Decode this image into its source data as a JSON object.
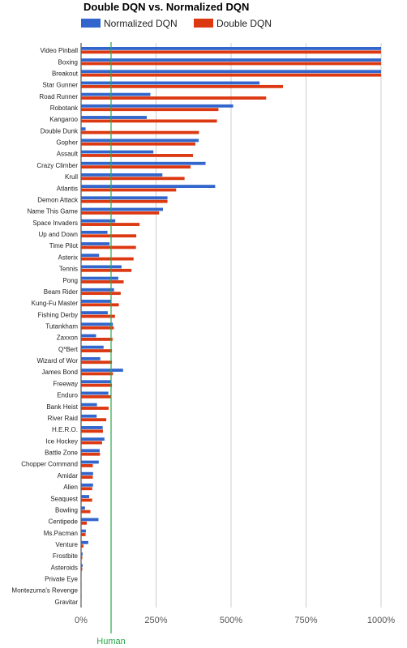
{
  "chart_data": {
    "type": "bar",
    "orientation": "horizontal",
    "title": "Double DQN vs. Normalized DQN",
    "legend_position": "top",
    "categories": [
      "Video Pinball",
      "Boxing",
      "Breakout",
      "Star Gunner",
      "Road Runner",
      "Robotank",
      "Kangaroo",
      "Double Dunk",
      "Gopher",
      "Assault",
      "Crazy Climber",
      "Krull",
      "Atlantis",
      "Demon Attack",
      "Name This Game",
      "Space Invaders",
      "Up and Down",
      "Time Pilot",
      "Asterix",
      "Tennis",
      "Pong",
      "Beam Rider",
      "Kung-Fu Master",
      "Fishing Derby",
      "Tutankham",
      "Zaxxon",
      "Q*Bert",
      "Wizard of Wor",
      "James Bond",
      "Freeway",
      "Enduro",
      "Bank Heist",
      "River Raid",
      "H.E.R.O.",
      "Ice Hockey",
      "Battle Zone",
      "Chopper Command",
      "Amidar",
      "Alien",
      "Seaquest",
      "Bowling",
      "Centipede",
      "Ms.Pacman",
      "Venture",
      "Frostbite",
      "Asteroids",
      "Private Eye",
      "Montezuma's Revenge",
      "Gravitar"
    ],
    "series": [
      {
        "name": "Normalized DQN",
        "color": "#3366cc",
        "values": [
          1000,
          1000,
          1000,
          595,
          231,
          507,
          219,
          15,
          392,
          241,
          415,
          271,
          447,
          288,
          273,
          114,
          88,
          95,
          60,
          135,
          124,
          110,
          99,
          89,
          106,
          50,
          75,
          64,
          140,
          99,
          91,
          53,
          52,
          72,
          78,
          62,
          59,
          40,
          40,
          27,
          13,
          58,
          16,
          24,
          5,
          5,
          0,
          0,
          0
        ]
      },
      {
        "name": "Double DQN",
        "color": "#dc3912",
        "values": [
          1000,
          1000,
          1000,
          673,
          617,
          458,
          453,
          393,
          381,
          373,
          365,
          345,
          317,
          288,
          260,
          195,
          184,
          183,
          175,
          168,
          142,
          132,
          126,
          113,
          109,
          105,
          103,
          103,
          106,
          103,
          101,
          92,
          84,
          73,
          70,
          63,
          39,
          39,
          37,
          37,
          31,
          19,
          15,
          8,
          4,
          4,
          1,
          1,
          1
        ]
      }
    ],
    "x_ticks": [
      "0%",
      "250%",
      "500%",
      "750%",
      "1000%"
    ],
    "xlim": [
      0,
      1000
    ],
    "reference_line": {
      "label": "Human",
      "value": 100,
      "color": "#2aa84a"
    },
    "grid": true
  }
}
